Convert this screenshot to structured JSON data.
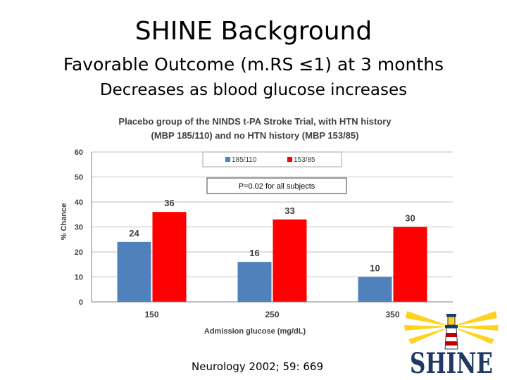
{
  "slide": {
    "title": "SHINE Background",
    "subtitle": "Favorable Outcome (m.RS ≤1) at 3 months",
    "subtitle2": "Decreases as blood glucose increases",
    "citation": "Neurology 2002; 59: 669"
  },
  "logo": {
    "text": "SHINE"
  },
  "colors": {
    "series1": "#4f81bd",
    "series2": "#ff0000",
    "grid": "#bfbfbf"
  },
  "chart_data": {
    "type": "bar",
    "title_line1": "Placebo group of the NINDS t-PA Stroke Trial, with HTN history",
    "title_line2": "(MBP 185/110) and no HTN history (MBP 153/85)",
    "xlabel": "Admission glucose (mg/dL)",
    "ylabel": "% Chance",
    "categories": [
      "150",
      "250",
      "350"
    ],
    "series": [
      {
        "name": "185/110",
        "values": [
          24,
          16,
          10
        ]
      },
      {
        "name": "153/85",
        "values": [
          36,
          33,
          30
        ]
      }
    ],
    "ylim": [
      0,
      60
    ],
    "yticks": [
      0,
      10,
      20,
      30,
      40,
      50,
      60
    ],
    "annotation": "P=0.02 for all subjects",
    "legend_position": "top",
    "grid": true
  }
}
